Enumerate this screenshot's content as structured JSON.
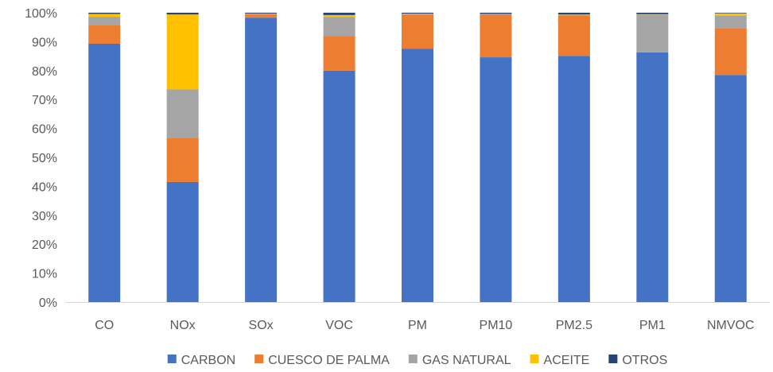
{
  "chart_data": {
    "type": "bar",
    "stacked": true,
    "percent_stacked": true,
    "categories": [
      "CO",
      "NOx",
      "SOx",
      "VOC",
      "PM",
      "PM10",
      "PM2.5",
      "PM1",
      "NMVOC"
    ],
    "series": [
      {
        "name": "CARBON",
        "color": "#4472C4",
        "values": [
          89.3,
          41.5,
          98.3,
          80.0,
          87.6,
          84.6,
          85.1,
          86.3,
          78.5
        ]
      },
      {
        "name": "CUESCO DE PALMA",
        "color": "#ED7D31",
        "values": [
          6.5,
          15.2,
          1.2,
          12.0,
          11.8,
          14.7,
          14.0,
          0.0,
          16.2
        ]
      },
      {
        "name": "GAS NATURAL",
        "color": "#A5A5A5",
        "values": [
          2.8,
          16.8,
          0.1,
          6.5,
          0.2,
          0.2,
          0.2,
          13.1,
          4.2
        ]
      },
      {
        "name": "ACEITE",
        "color": "#FFC000",
        "values": [
          1.0,
          25.9,
          0.1,
          0.7,
          0.1,
          0.1,
          0.1,
          0.1,
          0.9
        ]
      },
      {
        "name": "OTROS",
        "color": "#264478",
        "values": [
          0.4,
          0.6,
          0.3,
          0.8,
          0.3,
          0.4,
          0.6,
          0.5,
          0.2
        ]
      }
    ],
    "y_ticks": [
      "0%",
      "10%",
      "20%",
      "30%",
      "40%",
      "50%",
      "60%",
      "70%",
      "80%",
      "90%",
      "100%"
    ],
    "ylim": [
      0,
      100
    ],
    "grid": false,
    "legend_position": "bottom"
  }
}
